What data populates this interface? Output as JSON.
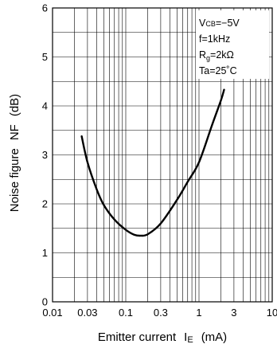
{
  "chart_data": {
    "type": "line",
    "title": "",
    "xscale": "log",
    "xlim": [
      0.01,
      10
    ],
    "ylim": [
      0,
      6
    ],
    "grid": true,
    "xlabel": {
      "main": "Emitter current",
      "symbol": "I",
      "sub": "E",
      "unit": "(mA)"
    },
    "ylabel": {
      "main": "Noise figure",
      "symbol": "NF",
      "unit": "(dB)"
    },
    "x_ticks": [
      {
        "v": 0.01,
        "label": "0.01"
      },
      {
        "v": 0.03,
        "label": "0.03"
      },
      {
        "v": 0.1,
        "label": "0.1"
      },
      {
        "v": 0.3,
        "label": "0.3"
      },
      {
        "v": 1,
        "label": "1"
      },
      {
        "v": 3,
        "label": "3"
      },
      {
        "v": 10,
        "label": "10"
      }
    ],
    "y_ticks": [
      {
        "v": 0,
        "label": "0"
      },
      {
        "v": 1,
        "label": "1"
      },
      {
        "v": 2,
        "label": "2"
      },
      {
        "v": 3,
        "label": "3"
      },
      {
        "v": 4,
        "label": "4"
      },
      {
        "v": 5,
        "label": "5"
      },
      {
        "v": 6,
        "label": "6"
      }
    ],
    "conditions": {
      "vcb": {
        "main": "V",
        "sub": "CB",
        "rest": "=−5V"
      },
      "freq": {
        "text": "f=1kHz"
      },
      "rg": {
        "main": "R",
        "sub": "g",
        "rest": "=2kΩ"
      },
      "ta": {
        "text": "Ta=25˚C"
      }
    },
    "series": [
      {
        "points": [
          [
            0.025,
            3.38
          ],
          [
            0.03,
            2.85
          ],
          [
            0.04,
            2.3
          ],
          [
            0.05,
            1.98
          ],
          [
            0.07,
            1.68
          ],
          [
            0.1,
            1.47
          ],
          [
            0.13,
            1.37
          ],
          [
            0.16,
            1.35
          ],
          [
            0.2,
            1.38
          ],
          [
            0.3,
            1.6
          ],
          [
            0.5,
            2.08
          ],
          [
            0.7,
            2.45
          ],
          [
            1,
            2.85
          ],
          [
            1.5,
            3.6
          ],
          [
            2,
            4.12
          ],
          [
            2.2,
            4.33
          ]
        ]
      }
    ],
    "colors": {
      "line": "#000000",
      "grid": "#000000",
      "background": "#ffffff"
    }
  }
}
